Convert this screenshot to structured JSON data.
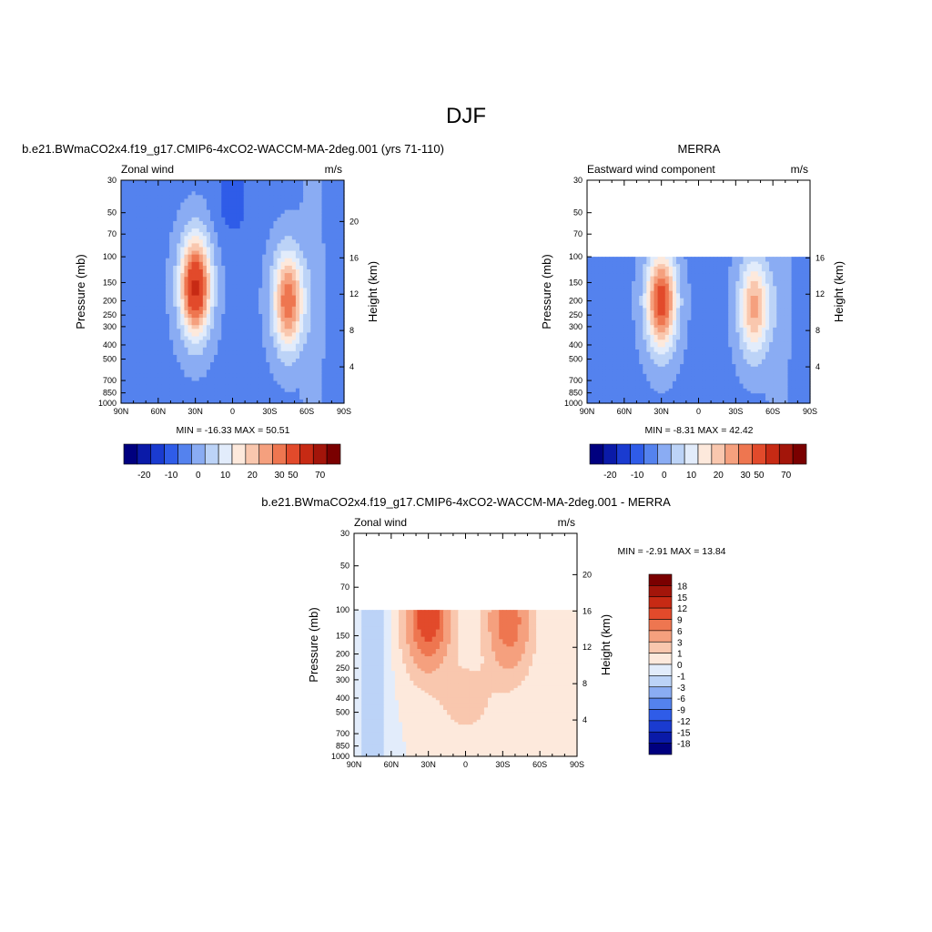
{
  "figure_title": "DJF",
  "chart_data": [
    {
      "type": "heatmap",
      "title": "b.e21.BWmaCO2x4.f19_g17.CMIP6-4xCO2-WACCM-MA-2deg.001 (yrs 71-110)",
      "left_string": "Zonal wind",
      "right_string": "m/s",
      "ylabel": "Pressure (mb)",
      "y2label": "Height (km)",
      "x_ticks": [
        "90N",
        "60N",
        "30N",
        "0",
        "30S",
        "60S",
        "90S"
      ],
      "y_ticks": [
        "30",
        "50",
        "70",
        "100",
        "150",
        "200",
        "250",
        "300",
        "400",
        "500",
        "700",
        "850",
        "1000"
      ],
      "y2_ticks": [
        "20",
        "16",
        "12",
        "8",
        "4"
      ],
      "stats": "MIN = -16.33  MAX =  50.51",
      "min": -16.33,
      "max": 50.51,
      "plev_top": 30,
      "colorbar_labels": [
        "-20",
        "-10",
        "0",
        "10",
        "20",
        "30",
        "50",
        "70"
      ],
      "jets": [
        {
          "lat": 30,
          "p": 160,
          "speed": 48
        },
        {
          "lat": -45,
          "p": 200,
          "speed": 36
        }
      ]
    },
    {
      "type": "heatmap",
      "title": "MERRA",
      "left_string": "Eastward wind component",
      "right_string": "m/s",
      "ylabel": "Pressure (mb)",
      "y2label": "Height (km)",
      "x_ticks": [
        "90N",
        "60N",
        "30N",
        "0",
        "30S",
        "60S",
        "90S"
      ],
      "y_ticks": [
        "30",
        "50",
        "70",
        "100",
        "150",
        "200",
        "250",
        "300",
        "400",
        "500",
        "700",
        "850",
        "1000"
      ],
      "y2_ticks": [
        "16",
        "12",
        "8",
        "4"
      ],
      "stats": "MIN =  -8.31  MAX =  42.42",
      "min": -8.31,
      "max": 42.42,
      "plev_top": 100,
      "colorbar_labels": [
        "-20",
        "-10",
        "0",
        "10",
        "20",
        "30",
        "50",
        "70"
      ],
      "jets": [
        {
          "lat": 30,
          "p": 200,
          "speed": 40
        },
        {
          "lat": -45,
          "p": 220,
          "speed": 28
        }
      ]
    },
    {
      "type": "heatmap",
      "title": "b.e21.BWmaCO2x4.f19_g17.CMIP6-4xCO2-WACCM-MA-2deg.001 - MERRA",
      "left_string": "Zonal wind",
      "right_string": "m/s",
      "ylabel": "Pressure (mb)",
      "y2label": "Height (km)",
      "x_ticks": [
        "90N",
        "60N",
        "30N",
        "0",
        "30S",
        "60S",
        "90S"
      ],
      "y_ticks": [
        "30",
        "50",
        "70",
        "100",
        "150",
        "200",
        "250",
        "300",
        "400",
        "500",
        "700",
        "850",
        "1000"
      ],
      "y2_ticks": [
        "20",
        "16",
        "12",
        "8",
        "4"
      ],
      "stats": "MIN =  -2.91  MAX =  13.84",
      "min": -2.91,
      "max": 13.84,
      "plev_top": 100,
      "colorbar_labels": [
        "18",
        "15",
        "12",
        "9",
        "6",
        "3",
        "1",
        "0",
        "-1",
        "-3",
        "-6",
        "-9",
        "-12",
        "-15",
        "-18"
      ],
      "jets": [
        {
          "lat": 30,
          "p": 110,
          "speed": 12
        },
        {
          "lat": -35,
          "p": 120,
          "speed": 8
        }
      ]
    }
  ],
  "colors": {
    "abs_scale": [
      "#00007f",
      "#0a1aa8",
      "#1a3bd0",
      "#2f5ce8",
      "#5482ee",
      "#8aacf3",
      "#bcd3f7",
      "#e2ecfb",
      "#fde9dc",
      "#f9c7ae",
      "#f5a07e",
      "#ee7650",
      "#e24a2b",
      "#c72a14",
      "#a3150a",
      "#7a0000"
    ],
    "diff_scale": [
      "#7a0000",
      "#a3150a",
      "#c72a14",
      "#e24a2b",
      "#ee7650",
      "#f5a07e",
      "#f9c7ae",
      "#fde9dc",
      "#e2ecfb",
      "#bcd3f7",
      "#8aacf3",
      "#5482ee",
      "#2f5ce8",
      "#1a3bd0",
      "#0a1aa8",
      "#00007f"
    ]
  }
}
